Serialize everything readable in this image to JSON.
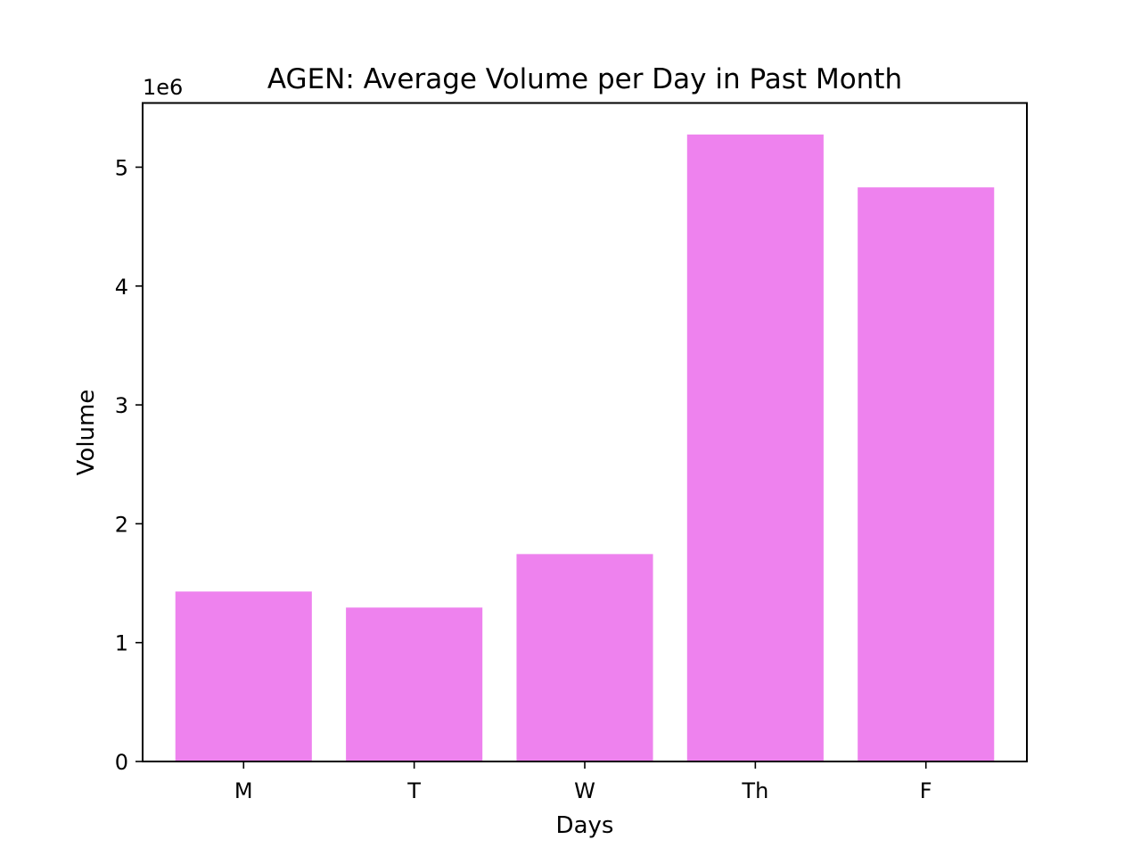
{
  "chart_data": {
    "type": "bar",
    "title": "AGEN: Average Volume per Day in Past Month",
    "xlabel": "Days",
    "ylabel": "Volume",
    "y_offset_label": "1e6",
    "categories": [
      "M",
      "T",
      "W",
      "Th",
      "F"
    ],
    "values": [
      1430000,
      1295000,
      1745000,
      5275000,
      4830000
    ],
    "ylim": [
      0,
      5540000
    ],
    "y_ticks": [
      0,
      1000000,
      2000000,
      3000000,
      4000000,
      5000000
    ],
    "y_tick_labels": [
      "0",
      "1",
      "2",
      "3",
      "4",
      "5"
    ],
    "bar_color": "#ee82ee",
    "grid": false,
    "legend": false
  }
}
